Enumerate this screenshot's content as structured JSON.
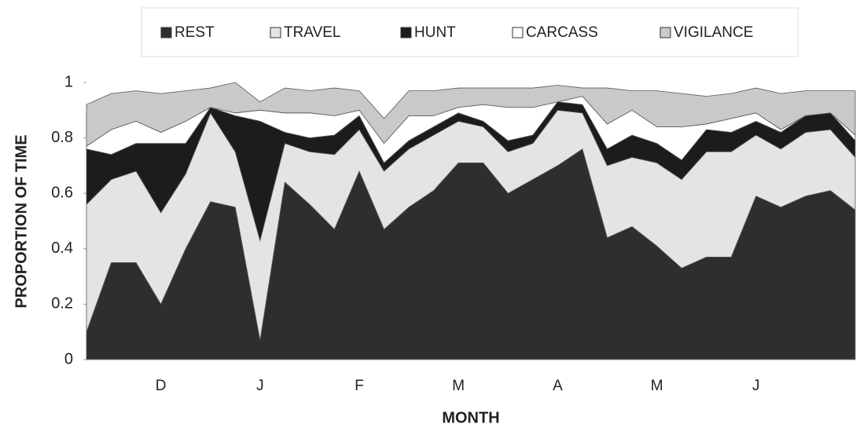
{
  "chart_data": {
    "type": "stacked-area",
    "x_label": "MONTH",
    "y_label": "PROPORTION OF TIME",
    "categories": [
      null,
      null,
      null,
      "D",
      null,
      null,
      null,
      "J",
      null,
      null,
      null,
      "F",
      null,
      null,
      null,
      "M",
      null,
      null,
      null,
      "A",
      null,
      null,
      null,
      "M",
      null,
      null,
      null,
      "J",
      null,
      null,
      null,
      null
    ],
    "series": [
      {
        "name": "REST",
        "color": "#2e2e2e",
        "values": [
          0.1,
          0.35,
          0.35,
          0.2,
          0.4,
          0.57,
          0.55,
          0.07,
          0.64,
          0.56,
          0.47,
          0.68,
          0.47,
          0.55,
          0.61,
          0.71,
          0.71,
          0.6,
          0.65,
          0.7,
          0.76,
          0.44,
          0.48,
          0.41,
          0.33,
          0.37,
          0.37,
          0.59,
          0.55,
          0.59,
          0.61,
          0.54
        ]
      },
      {
        "name": "TRAVEL",
        "color": "#e4e4e4",
        "values": [
          0.46,
          0.3,
          0.33,
          0.33,
          0.27,
          0.32,
          0.2,
          0.36,
          0.14,
          0.19,
          0.27,
          0.15,
          0.21,
          0.21,
          0.2,
          0.15,
          0.13,
          0.15,
          0.13,
          0.2,
          0.13,
          0.26,
          0.25,
          0.3,
          0.32,
          0.38,
          0.38,
          0.22,
          0.21,
          0.23,
          0.22,
          0.19
        ]
      },
      {
        "name": "HUNT",
        "color": "#1c1c1c",
        "values": [
          0.2,
          0.09,
          0.1,
          0.25,
          0.11,
          0.02,
          0.13,
          0.43,
          0.04,
          0.05,
          0.07,
          0.05,
          0.03,
          0.03,
          0.03,
          0.03,
          0.02,
          0.04,
          0.03,
          0.03,
          0.03,
          0.06,
          0.08,
          0.07,
          0.07,
          0.08,
          0.07,
          0.05,
          0.06,
          0.06,
          0.06,
          0.06
        ]
      },
      {
        "name": "CARCASS",
        "color": "#ffffff",
        "values": [
          0.01,
          0.09,
          0.08,
          0.04,
          0.08,
          0,
          0.01,
          0.04,
          0.07,
          0.09,
          0.07,
          0.02,
          0.07,
          0.09,
          0.04,
          0.02,
          0.06,
          0.12,
          0.1,
          0,
          0.03,
          0.09,
          0.09,
          0.06,
          0.12,
          0.02,
          0.05,
          0.03,
          0.01,
          0,
          0,
          0.02
        ]
      },
      {
        "name": "VIGILANCE",
        "color": "#c9c9c9",
        "values": [
          0.15,
          0.13,
          0.11,
          0.14,
          0.11,
          0.07,
          0.11,
          0.03,
          0.09,
          0.08,
          0.1,
          0.07,
          0.09,
          0.09,
          0.09,
          0.07,
          0.06,
          0.07,
          0.07,
          0.06,
          0.03,
          0.13,
          0.07,
          0.13,
          0.12,
          0.1,
          0.09,
          0.09,
          0.13,
          0.09,
          0.08,
          0.16
        ]
      }
    ],
    "ylim": [
      0,
      1
    ],
    "yticks": [
      0,
      0.2,
      0.4,
      0.6,
      0.8,
      1
    ]
  }
}
